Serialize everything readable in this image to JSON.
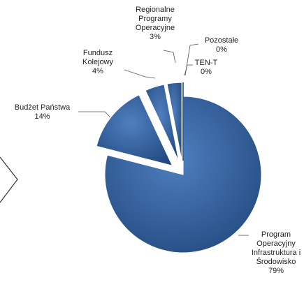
{
  "chart_data": {
    "type": "pie",
    "categories": [
      "Program Operacyjny Infrastruktura i Środowisko",
      "Budżet Państwa",
      "Fundusz Kolejowy",
      "Regionalne Programy Operacyjne",
      "TEN-T",
      "Pozostałe"
    ],
    "values": [
      79,
      14,
      4,
      3,
      0,
      0
    ],
    "value_labels": [
      "79%",
      "14%",
      "4%",
      "3%",
      "0%",
      "0%"
    ],
    "color": "#2f5d98"
  }
}
